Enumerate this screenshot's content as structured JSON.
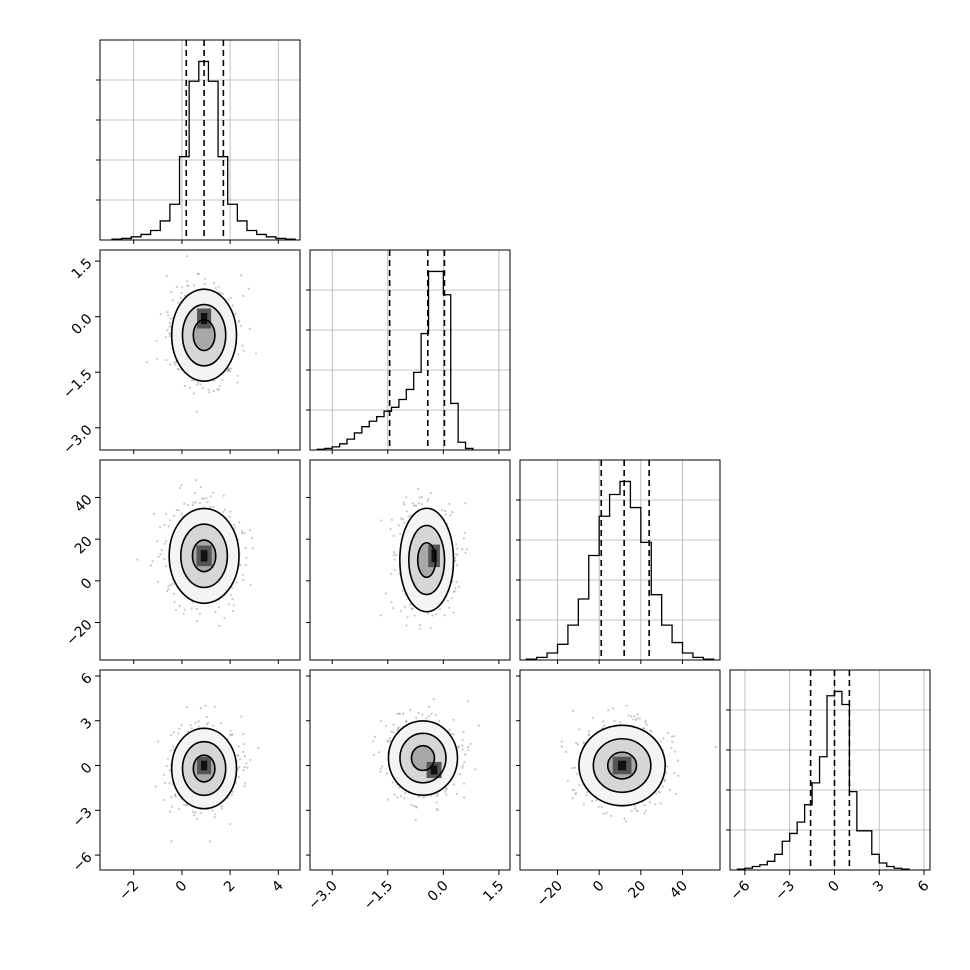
{
  "chart_data": {
    "type": "corner",
    "params": [
      {
        "range": [
          -3.4,
          4.9
        ],
        "ticks": [
          -2,
          0,
          2,
          4
        ]
      },
      {
        "range": [
          -3.6,
          1.8
        ],
        "ticks": [
          -3.0,
          -1.5,
          0.0,
          1.5
        ]
      },
      {
        "range": [
          -38,
          58
        ],
        "ticks": [
          -20,
          0,
          20,
          40
        ]
      },
      {
        "range": [
          -7,
          6.4
        ],
        "ticks": [
          -6,
          -3,
          0,
          3,
          6
        ]
      }
    ],
    "quantiles": [
      [
        0.18,
        0.92,
        1.72
      ],
      [
        -1.45,
        -0.42,
        0.03
      ],
      [
        1.0,
        12.0,
        24.0
      ],
      [
        -1.6,
        0.0,
        1.0
      ]
    ],
    "grid": true,
    "histograms": [
      {
        "bin_edges": [
          -2.9,
          -2.5,
          -2.1,
          -1.7,
          -1.3,
          -0.9,
          -0.5,
          -0.1,
          0.3,
          0.7,
          1.1,
          1.5,
          1.9,
          2.3,
          2.7,
          3.1,
          3.5,
          3.9,
          4.3,
          4.7
        ],
        "counts": [
          1,
          2,
          4,
          7,
          12,
          24,
          45,
          105,
          200,
          225,
          200,
          105,
          45,
          24,
          12,
          7,
          4,
          2,
          1
        ]
      },
      {
        "bin_edges": [
          -3.4,
          -3.2,
          -3.0,
          -2.8,
          -2.6,
          -2.4,
          -2.2,
          -2.0,
          -1.8,
          -1.6,
          -1.4,
          -1.2,
          -1.0,
          -0.8,
          -0.6,
          -0.4,
          -0.2,
          0.0,
          0.2,
          0.4,
          0.6,
          0.8
        ],
        "counts": [
          1,
          2,
          4,
          8,
          14,
          22,
          30,
          37,
          43,
          50,
          55,
          65,
          78,
          100,
          150,
          230,
          230,
          200,
          60,
          10,
          2
        ]
      },
      {
        "bin_edges": [
          -35,
          -30,
          -25,
          -20,
          -15,
          -10,
          -5,
          0,
          5,
          10,
          15,
          20,
          25,
          30,
          35,
          40,
          45,
          50,
          55
        ],
        "counts": [
          1,
          3,
          8,
          18,
          40,
          70,
          120,
          165,
          190,
          205,
          175,
          135,
          75,
          40,
          20,
          8,
          3,
          1
        ]
      },
      {
        "bin_edges": [
          -6.5,
          -6.0,
          -5.5,
          -5.0,
          -4.5,
          -4.0,
          -3.5,
          -3.0,
          -2.5,
          -2.0,
          -1.5,
          -1.0,
          -0.5,
          0.0,
          0.5,
          1.0,
          1.5,
          2.0,
          2.5,
          3.0,
          3.5,
          4.0,
          4.5,
          5.0
        ],
        "counts": [
          1,
          2,
          4,
          6,
          10,
          18,
          33,
          42,
          55,
          75,
          100,
          130,
          200,
          205,
          190,
          90,
          45,
          45,
          18,
          8,
          4,
          2,
          1
        ]
      }
    ],
    "pairs": [
      {
        "row": 1,
        "col": 0,
        "center": [
          0.92,
          -0.5
        ],
        "sd": [
          0.65,
          0.6
        ],
        "core": [
          0.92,
          -0.05
        ]
      },
      {
        "row": 2,
        "col": 0,
        "center": [
          0.92,
          12
        ],
        "sd": [
          0.7,
          11
        ],
        "core": [
          0.92,
          12
        ]
      },
      {
        "row": 2,
        "col": 1,
        "center": [
          -0.45,
          10
        ],
        "sd": [
          0.35,
          12
        ],
        "core": [
          -0.25,
          12
        ]
      },
      {
        "row": 3,
        "col": 0,
        "center": [
          0.92,
          -0.2
        ],
        "sd": [
          0.65,
          1.3
        ],
        "core": [
          0.92,
          0
        ]
      },
      {
        "row": 3,
        "col": 1,
        "center": [
          -0.55,
          0.5
        ],
        "sd": [
          0.45,
          1.2
        ],
        "core": [
          -0.25,
          -0.3
        ]
      },
      {
        "row": 3,
        "col": 2,
        "center": [
          11,
          0
        ],
        "sd": [
          10,
          1.3
        ],
        "core": [
          11,
          0
        ]
      }
    ],
    "contour_levels_sd": [
      0.6,
      1.2,
      1.8
    ]
  }
}
